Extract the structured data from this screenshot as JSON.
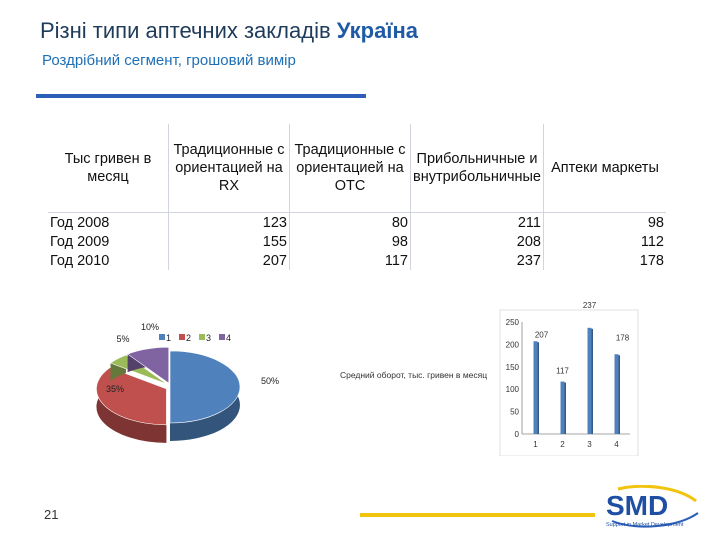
{
  "header": {
    "title_main": "Різні типи аптечних закладів ",
    "title_bold": "Україна",
    "subtitle": "Роздрібний сегмент, грошовий вимір"
  },
  "table": {
    "corner": "Тыс гривен в месяц",
    "columns": [
      "Традиционные с ориентацией на RX",
      "Традиционные с ориентацией на ОТС",
      "Прибольничные и внутрибольничные",
      "Аптеки маркеты"
    ],
    "rows": [
      {
        "label": "Год 2008",
        "values": [
          "123",
          "80",
          "211",
          "98"
        ]
      },
      {
        "label": "Год 2009",
        "values": [
          "155",
          "98",
          "208",
          "112"
        ]
      },
      {
        "label": "Год 2010",
        "values": [
          "207",
          "117",
          "237",
          "178"
        ]
      }
    ]
  },
  "chart_data": [
    {
      "type": "pie",
      "categories": [
        "1",
        "2",
        "3",
        "4"
      ],
      "values": [
        50,
        35,
        5,
        10
      ],
      "labels": [
        "50%",
        "35%",
        "5%",
        "10%"
      ],
      "legend": "top",
      "colors": [
        "#4f81bd",
        "#c0504d",
        "#9bbb59",
        "#8064a2"
      ]
    },
    {
      "type": "bar",
      "categories": [
        "1",
        "2",
        "3",
        "4"
      ],
      "values": [
        207,
        117,
        237,
        178
      ],
      "ylabel": "Средний оборот, тыс. гривен в месяц",
      "ylim": [
        0,
        250
      ],
      "yticks": [
        "0",
        "50",
        "100",
        "150",
        "200",
        "250"
      ],
      "color": "#4f81bd"
    }
  ],
  "footer": {
    "page_number": "21",
    "logo_text": "SMD",
    "logo_tagline": "Support in Market Development",
    "accent": "#f1c40f"
  }
}
